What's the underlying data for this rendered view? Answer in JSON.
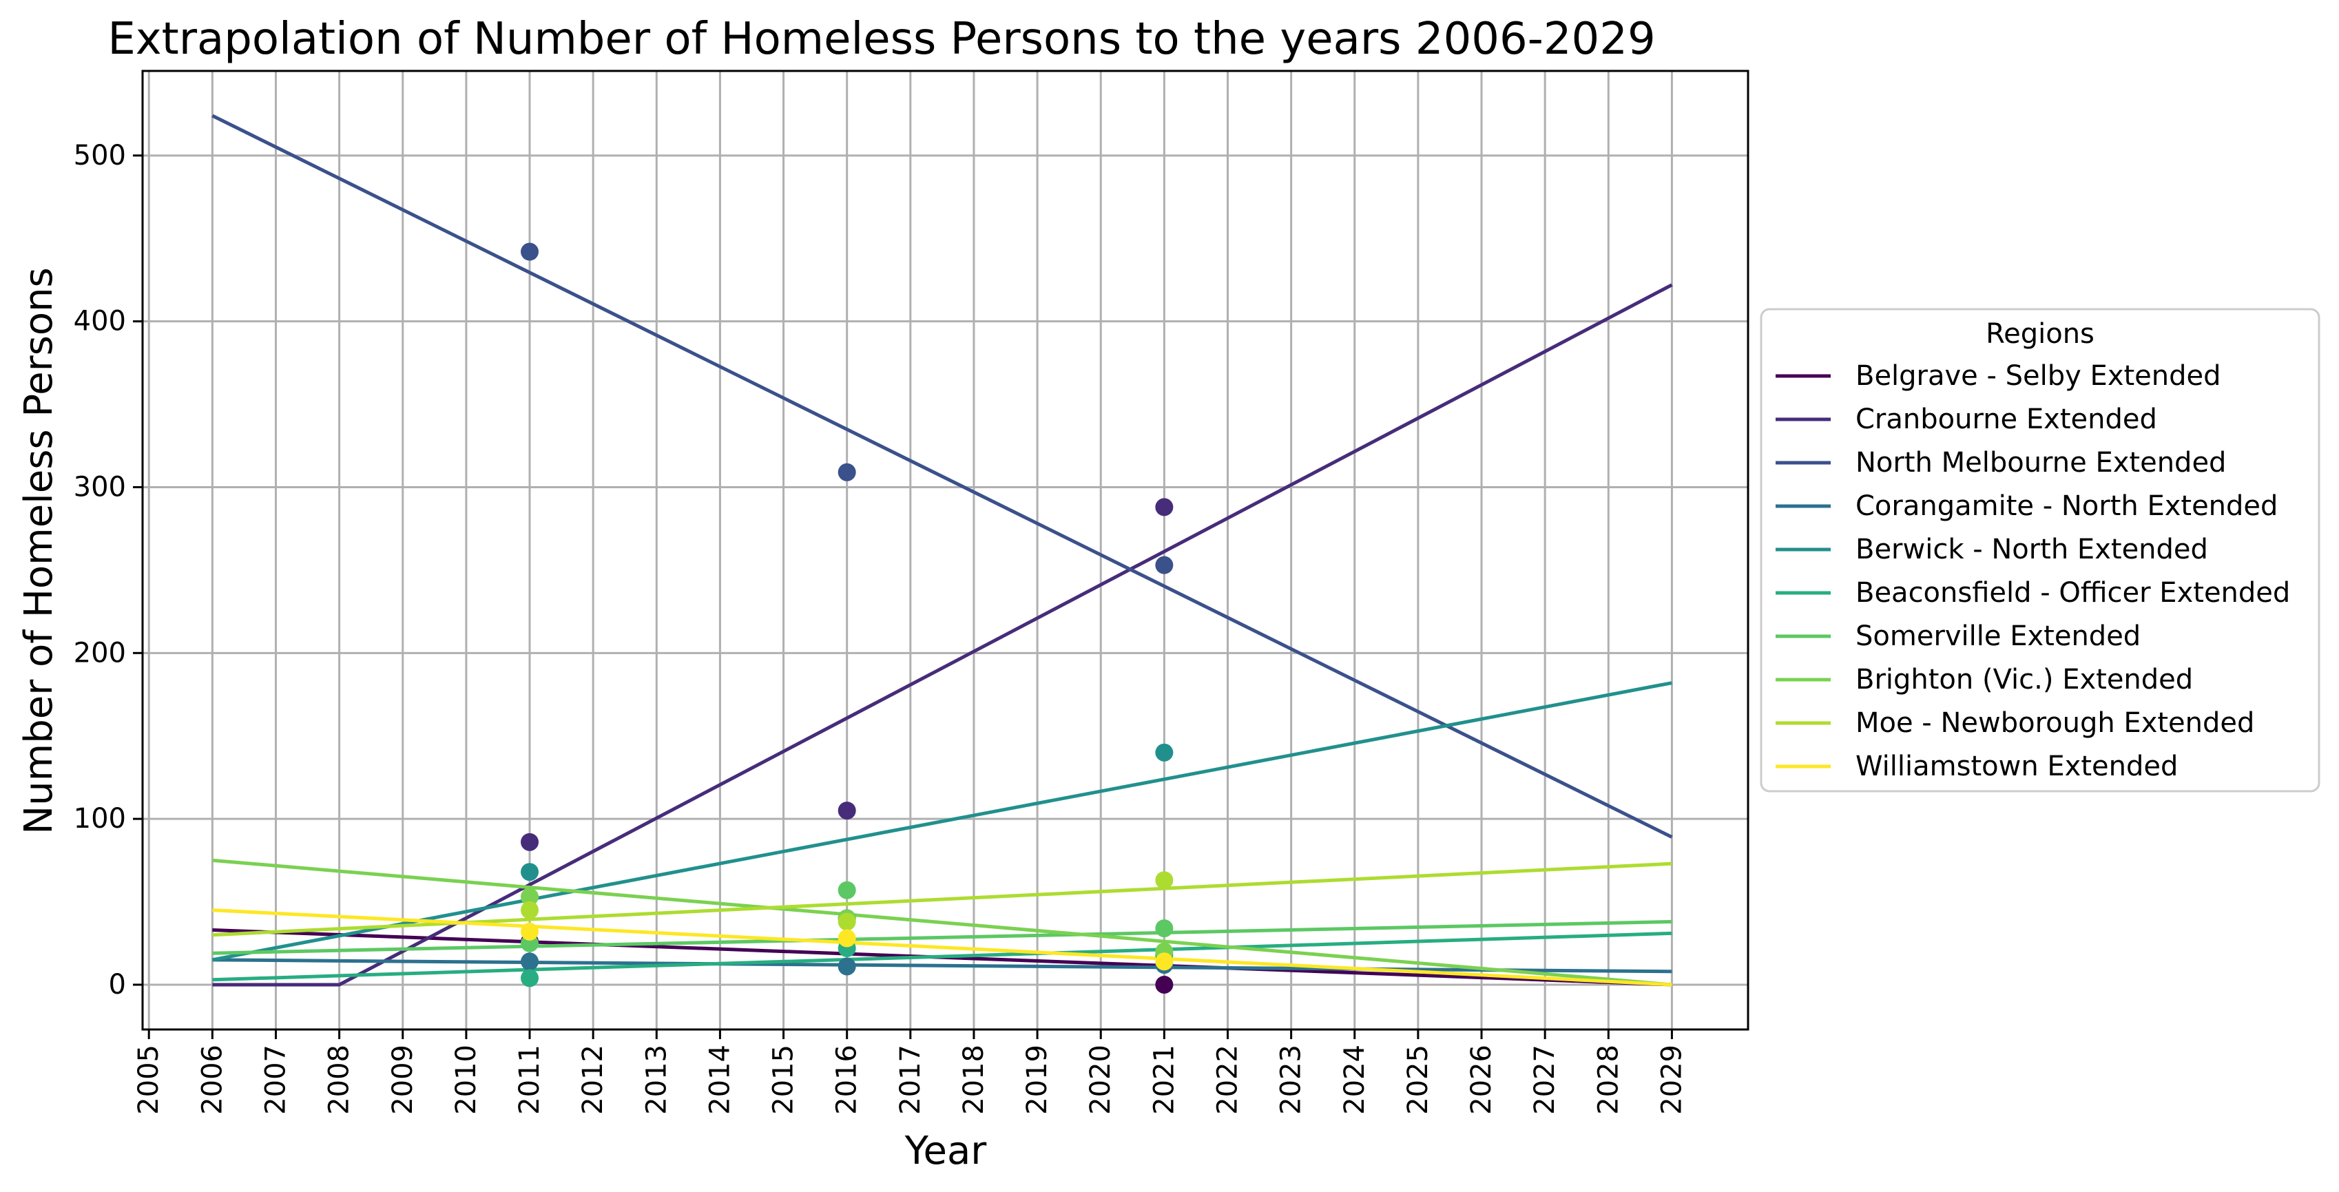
{
  "chart_data": {
    "type": "line",
    "title": "Extrapolation of Number of Homeless Persons to the years 2006-2029",
    "xlabel": "Year",
    "ylabel": "Number of Homeless Persons",
    "xlim": [
      2004.9,
      2030.2
    ],
    "ylim": [
      -27,
      551
    ],
    "x_ticks": [
      2005,
      2006,
      2007,
      2008,
      2009,
      2010,
      2011,
      2012,
      2013,
      2014,
      2015,
      2016,
      2017,
      2018,
      2019,
      2020,
      2021,
      2022,
      2023,
      2024,
      2025,
      2026,
      2027,
      2028,
      2029
    ],
    "y_ticks": [
      0,
      100,
      200,
      300,
      400,
      500
    ],
    "grid": true,
    "legend": {
      "title": "Regions",
      "placement": "outside-right"
    },
    "series": [
      {
        "name": "Belgrave - Selby Extended",
        "color": "#440154",
        "line": [
          [
            2006,
            33
          ],
          [
            2029,
            0
          ]
        ],
        "points": [
          [
            2011,
            26
          ],
          [
            2016,
            40
          ],
          [
            2021,
            0
          ]
        ]
      },
      {
        "name": "Cranbourne Extended",
        "color": "#472c7a",
        "line": [
          [
            2006,
            0
          ],
          [
            2008,
            0
          ],
          [
            2029,
            422
          ]
        ],
        "points": [
          [
            2011,
            86
          ],
          [
            2016,
            105
          ],
          [
            2021,
            288
          ]
        ]
      },
      {
        "name": "North Melbourne Extended",
        "color": "#3b518b",
        "line": [
          [
            2006,
            524
          ],
          [
            2029,
            89
          ]
        ],
        "points": [
          [
            2011,
            442
          ],
          [
            2016,
            309
          ],
          [
            2021,
            253
          ]
        ]
      },
      {
        "name": "Corangamite - North Extended",
        "color": "#2c718e",
        "line": [
          [
            2006,
            15
          ],
          [
            2029,
            8
          ]
        ],
        "points": [
          [
            2011,
            14
          ],
          [
            2016,
            11
          ],
          [
            2021,
            12
          ]
        ]
      },
      {
        "name": "Berwick - North Extended",
        "color": "#21908d",
        "line": [
          [
            2006,
            15
          ],
          [
            2029,
            182
          ]
        ],
        "points": [
          [
            2011,
            68
          ],
          [
            2016,
            40
          ],
          [
            2021,
            140
          ]
        ]
      },
      {
        "name": "Beaconsfield - Officer Extended",
        "color": "#27ad81",
        "line": [
          [
            2006,
            3
          ],
          [
            2029,
            31
          ]
        ],
        "points": [
          [
            2011,
            4
          ],
          [
            2016,
            22
          ],
          [
            2021,
            18
          ]
        ]
      },
      {
        "name": "Somerville Extended",
        "color": "#5cc863",
        "line": [
          [
            2006,
            19
          ],
          [
            2029,
            38
          ]
        ],
        "points": [
          [
            2011,
            25
          ],
          [
            2016,
            57
          ],
          [
            2021,
            34
          ]
        ]
      },
      {
        "name": "Brighton (Vic.) Extended",
        "color": "#7ad151",
        "line": [
          [
            2006,
            75
          ],
          [
            2029,
            0
          ]
        ],
        "points": [
          [
            2011,
            53
          ],
          [
            2016,
            40
          ],
          [
            2021,
            20
          ]
        ]
      },
      {
        "name": "Moe - Newborough Extended",
        "color": "#addc30",
        "line": [
          [
            2006,
            30
          ],
          [
            2029,
            73
          ]
        ],
        "points": [
          [
            2011,
            45
          ],
          [
            2016,
            38
          ],
          [
            2021,
            63
          ]
        ]
      },
      {
        "name": "Williamstown Extended",
        "color": "#fde725",
        "line": [
          [
            2006,
            45
          ],
          [
            2029,
            0
          ]
        ],
        "points": [
          [
            2011,
            32
          ],
          [
            2016,
            28
          ],
          [
            2021,
            14
          ]
        ]
      }
    ]
  }
}
